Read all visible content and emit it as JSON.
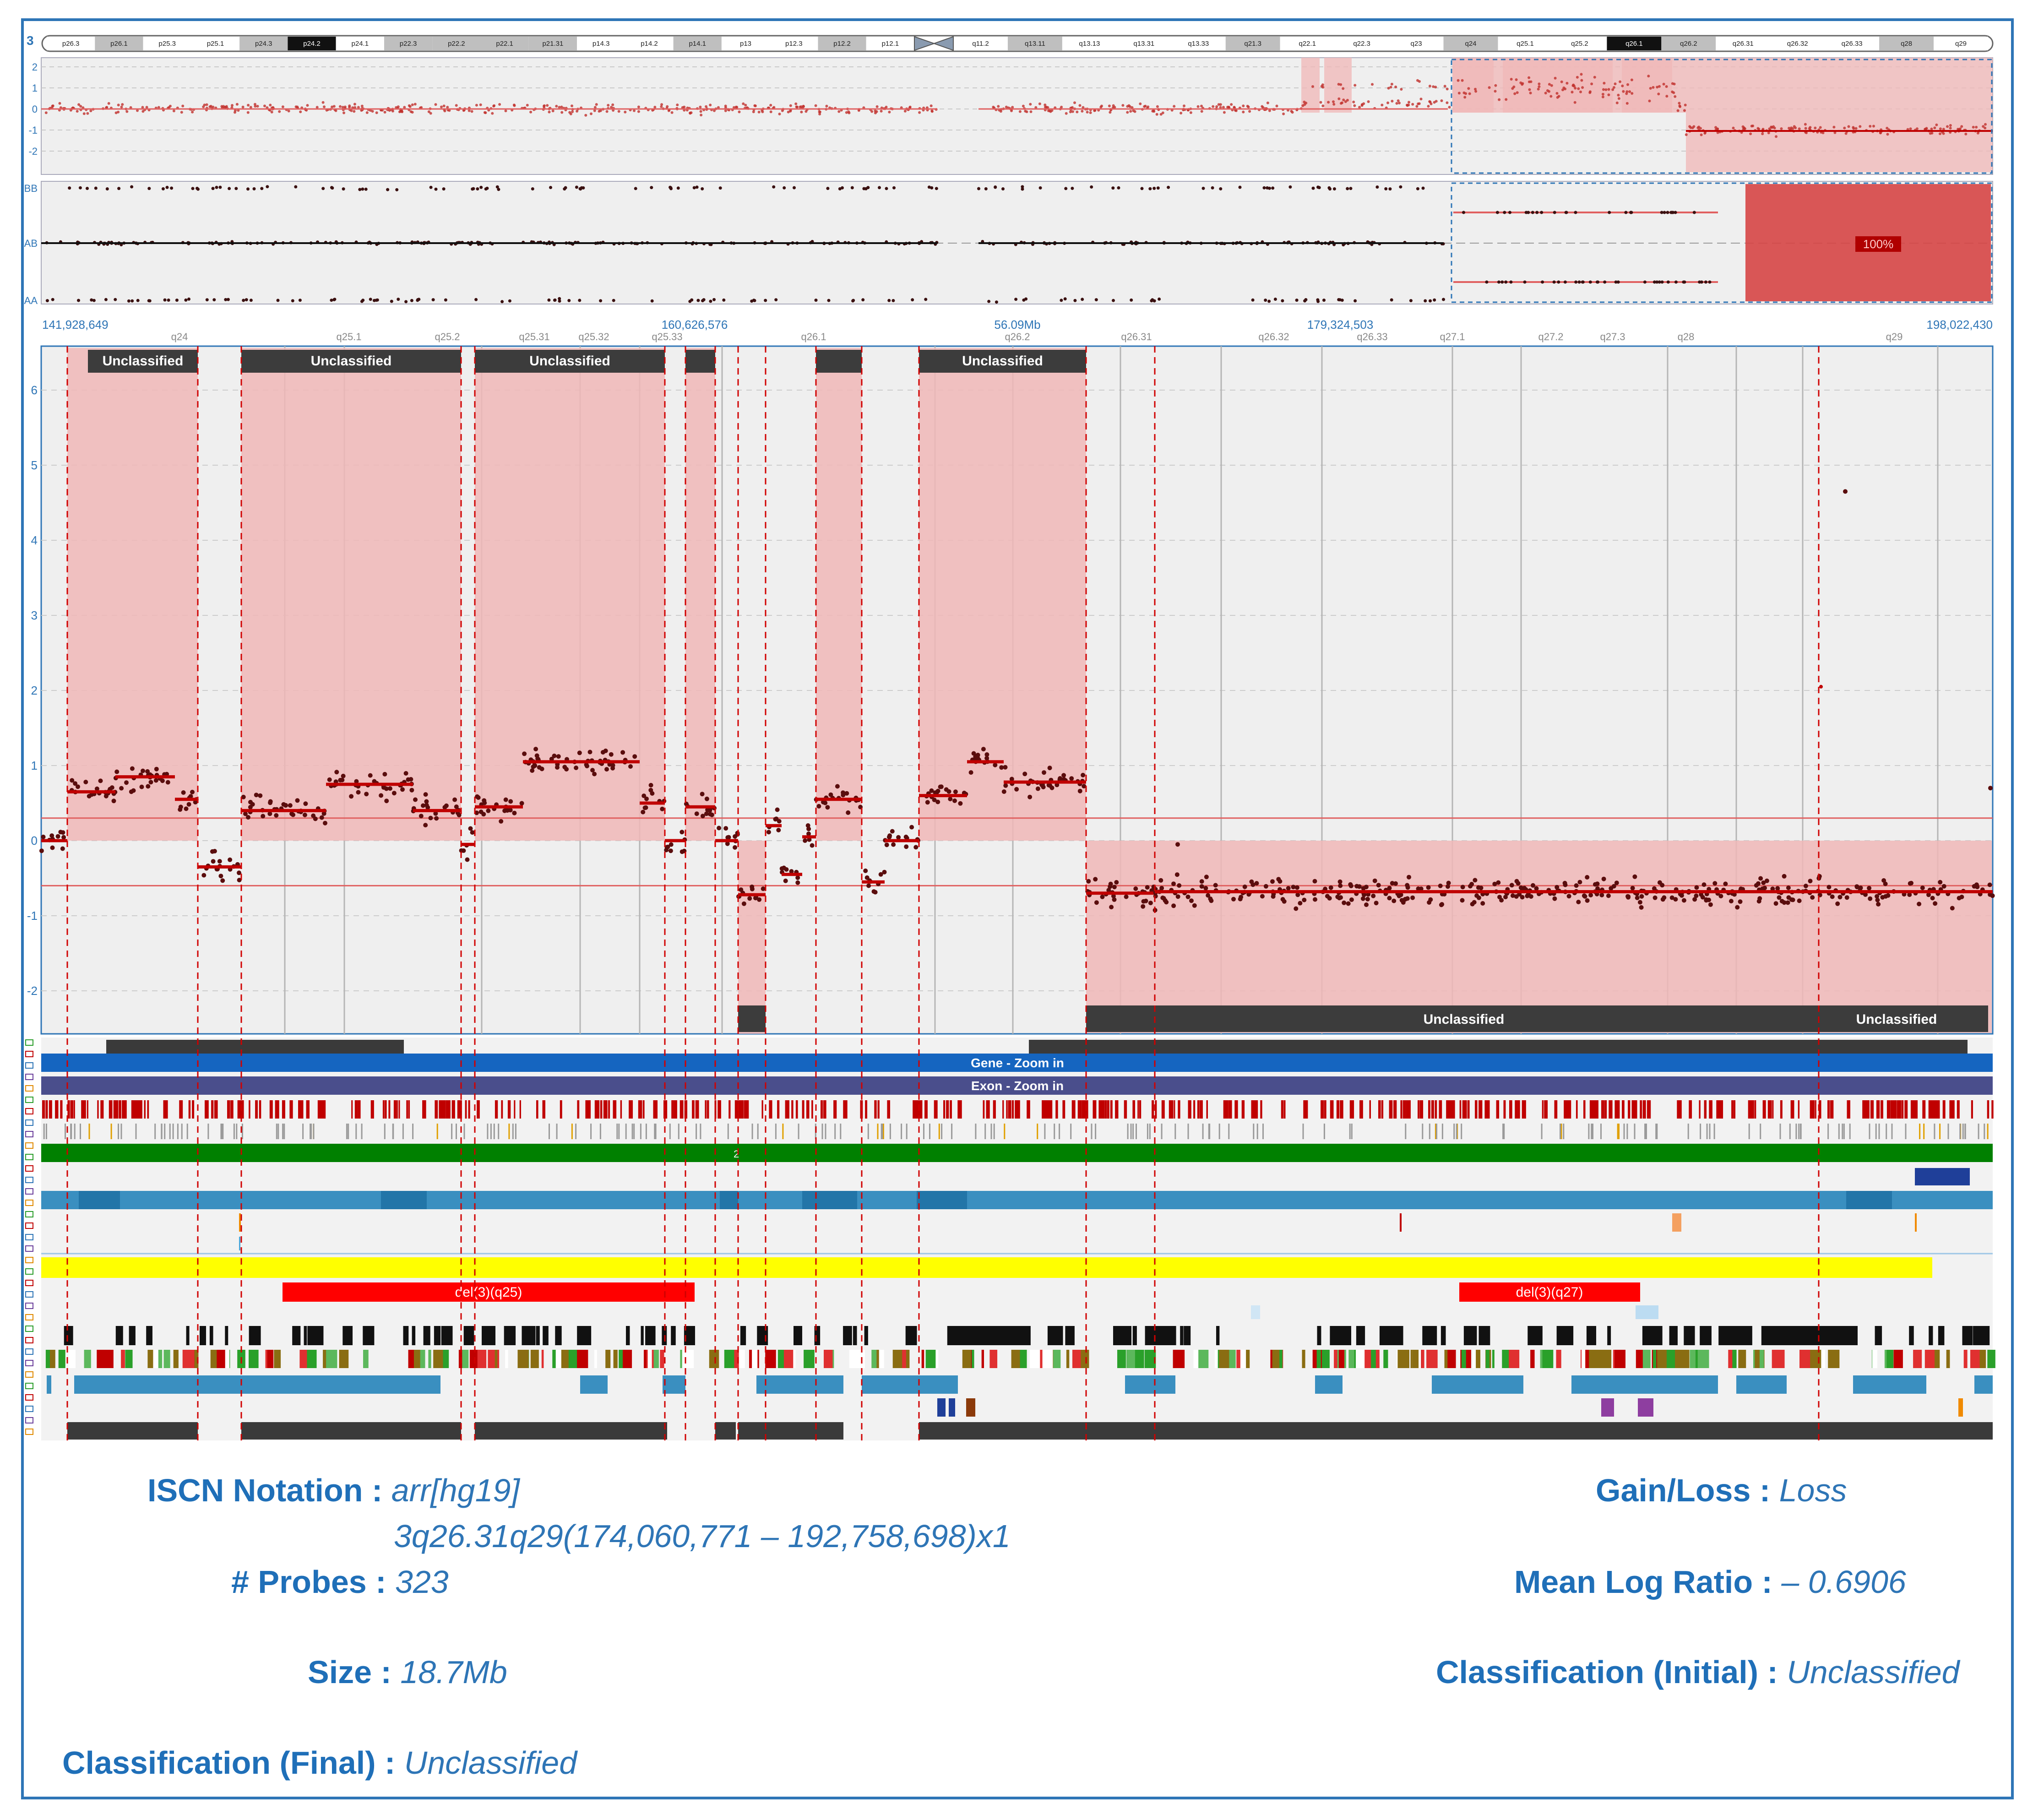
{
  "chromosome": {
    "label": "3",
    "p_bands": [
      "p26.3",
      "p26.1",
      "p25.3",
      "p25.1",
      "p24.3",
      "p24.2",
      "p24.1",
      "p22.3",
      "p22.2",
      "p22.1",
      "p21.31",
      "p14.3",
      "p14.2",
      "p14.1",
      "p13",
      "p12.3",
      "p12.2",
      "p12.1"
    ],
    "q_bands": [
      "q11.2",
      "q13.11",
      "q13.13",
      "q13.31",
      "q13.33",
      "q21.3",
      "q22.1",
      "q22.3",
      "q23",
      "q24",
      "q25.1",
      "q25.2",
      "q26.1",
      "q26.2",
      "q26.31",
      "q26.32",
      "q26.33",
      "q28",
      "q29"
    ]
  },
  "overview": {
    "log_ticks": [
      "2",
      "1",
      "0",
      "-1",
      "-2"
    ],
    "genotype_ticks": [
      "BB",
      "AB",
      "AA"
    ],
    "badge": "100%"
  },
  "coordinates": {
    "start": "141,928,649",
    "c1": "160,626,576",
    "mid": "56.09Mb",
    "c2": "179,324,503",
    "end": "198,022,430"
  },
  "zoom_bands": [
    "q24",
    "q25.1",
    "q25.2",
    "q25.31",
    "q25.32",
    "q25.33",
    "q26.1",
    "q26.2",
    "q26.31",
    "q26.32",
    "q26.33",
    "q27.1",
    "q27.2",
    "q27.3",
    "q28",
    "q29"
  ],
  "zoom_ticks": [
    "6",
    "5",
    "4",
    "3",
    "2",
    "1",
    "0",
    "-1",
    "-2"
  ],
  "segment_label": "Unclassified",
  "tracks": {
    "gene_label": "Gene - Zoom in",
    "exon_label": "Exon - Zoom in",
    "green_label": "2",
    "del_label_1": "del(3)(q25)",
    "del_label_2": "del(3)(q27)"
  },
  "colors": {
    "accent": "#2e75b6",
    "gain_shade": "#f0b7b7",
    "data_point": "#5a0d0d",
    "segment_line": "#c00000",
    "gene_track": "#1565c0",
    "exon_track": "#4a4e8c",
    "dgv_track": "#008000",
    "highlight_track": "#ffff00",
    "deletion": "#ff0000"
  },
  "summary": {
    "isc_key": "ISCN Notation :",
    "isc_val1": "arr[hg19]",
    "isc_val2": "3q26.31q29(174,060,771 – 192,758,698)x1",
    "probes_key": "# Probes :",
    "probes_val": "323",
    "size_key": "Size :",
    "size_val": "18.7Mb",
    "class_final_key": "Classification (Final) :",
    "class_final_val": "Unclassified",
    "gainloss_key": "Gain/Loss :",
    "gainloss_val": "Loss",
    "mlr_key": "Mean Log Ratio :",
    "mlr_val": "– 0.6906",
    "class_init_key": "Classification (Initial) :",
    "class_init_val": "Unclassified"
  }
}
